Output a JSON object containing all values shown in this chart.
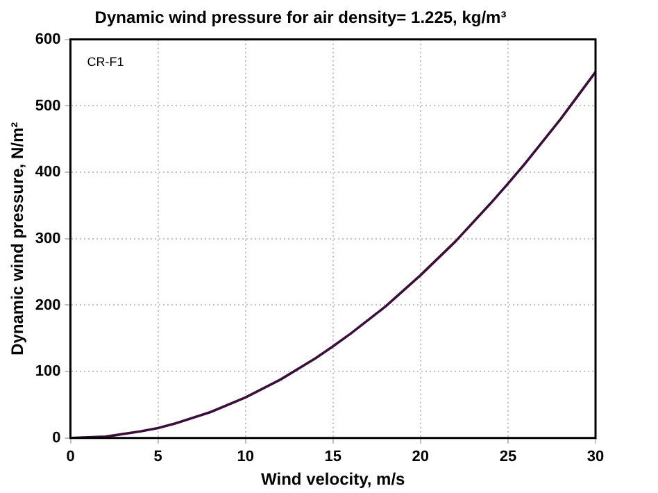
{
  "chart_data": {
    "type": "line",
    "title": "Dynamic wind pressure for air density= 1.225, kg/m³",
    "xlabel": "Wind velocity, m/s",
    "ylabel": "Dynamic wind pressure, N/m²",
    "annotations": [
      "CR-F1"
    ],
    "x": [
      0,
      2,
      4,
      5,
      6,
      8,
      10,
      12,
      14,
      15,
      16,
      18,
      20,
      22,
      24,
      25,
      26,
      28,
      30
    ],
    "series": [
      {
        "color": "#3a0f3a",
        "values": [
          0,
          2,
          10,
          15,
          22,
          39,
          61,
          88,
          120,
          138,
          157,
          198,
          245,
          296,
          353,
          383,
          414,
          480,
          551
        ]
      }
    ],
    "xlim": [
      0,
      30
    ],
    "xticks": [
      0,
      5,
      10,
      15,
      20,
      25,
      30
    ],
    "ylim": [
      0,
      600
    ],
    "yticks": [
      0,
      100,
      200,
      300,
      400,
      500,
      600
    ],
    "grid": true,
    "legend": false,
    "marker": "none",
    "line_style": "solid"
  }
}
